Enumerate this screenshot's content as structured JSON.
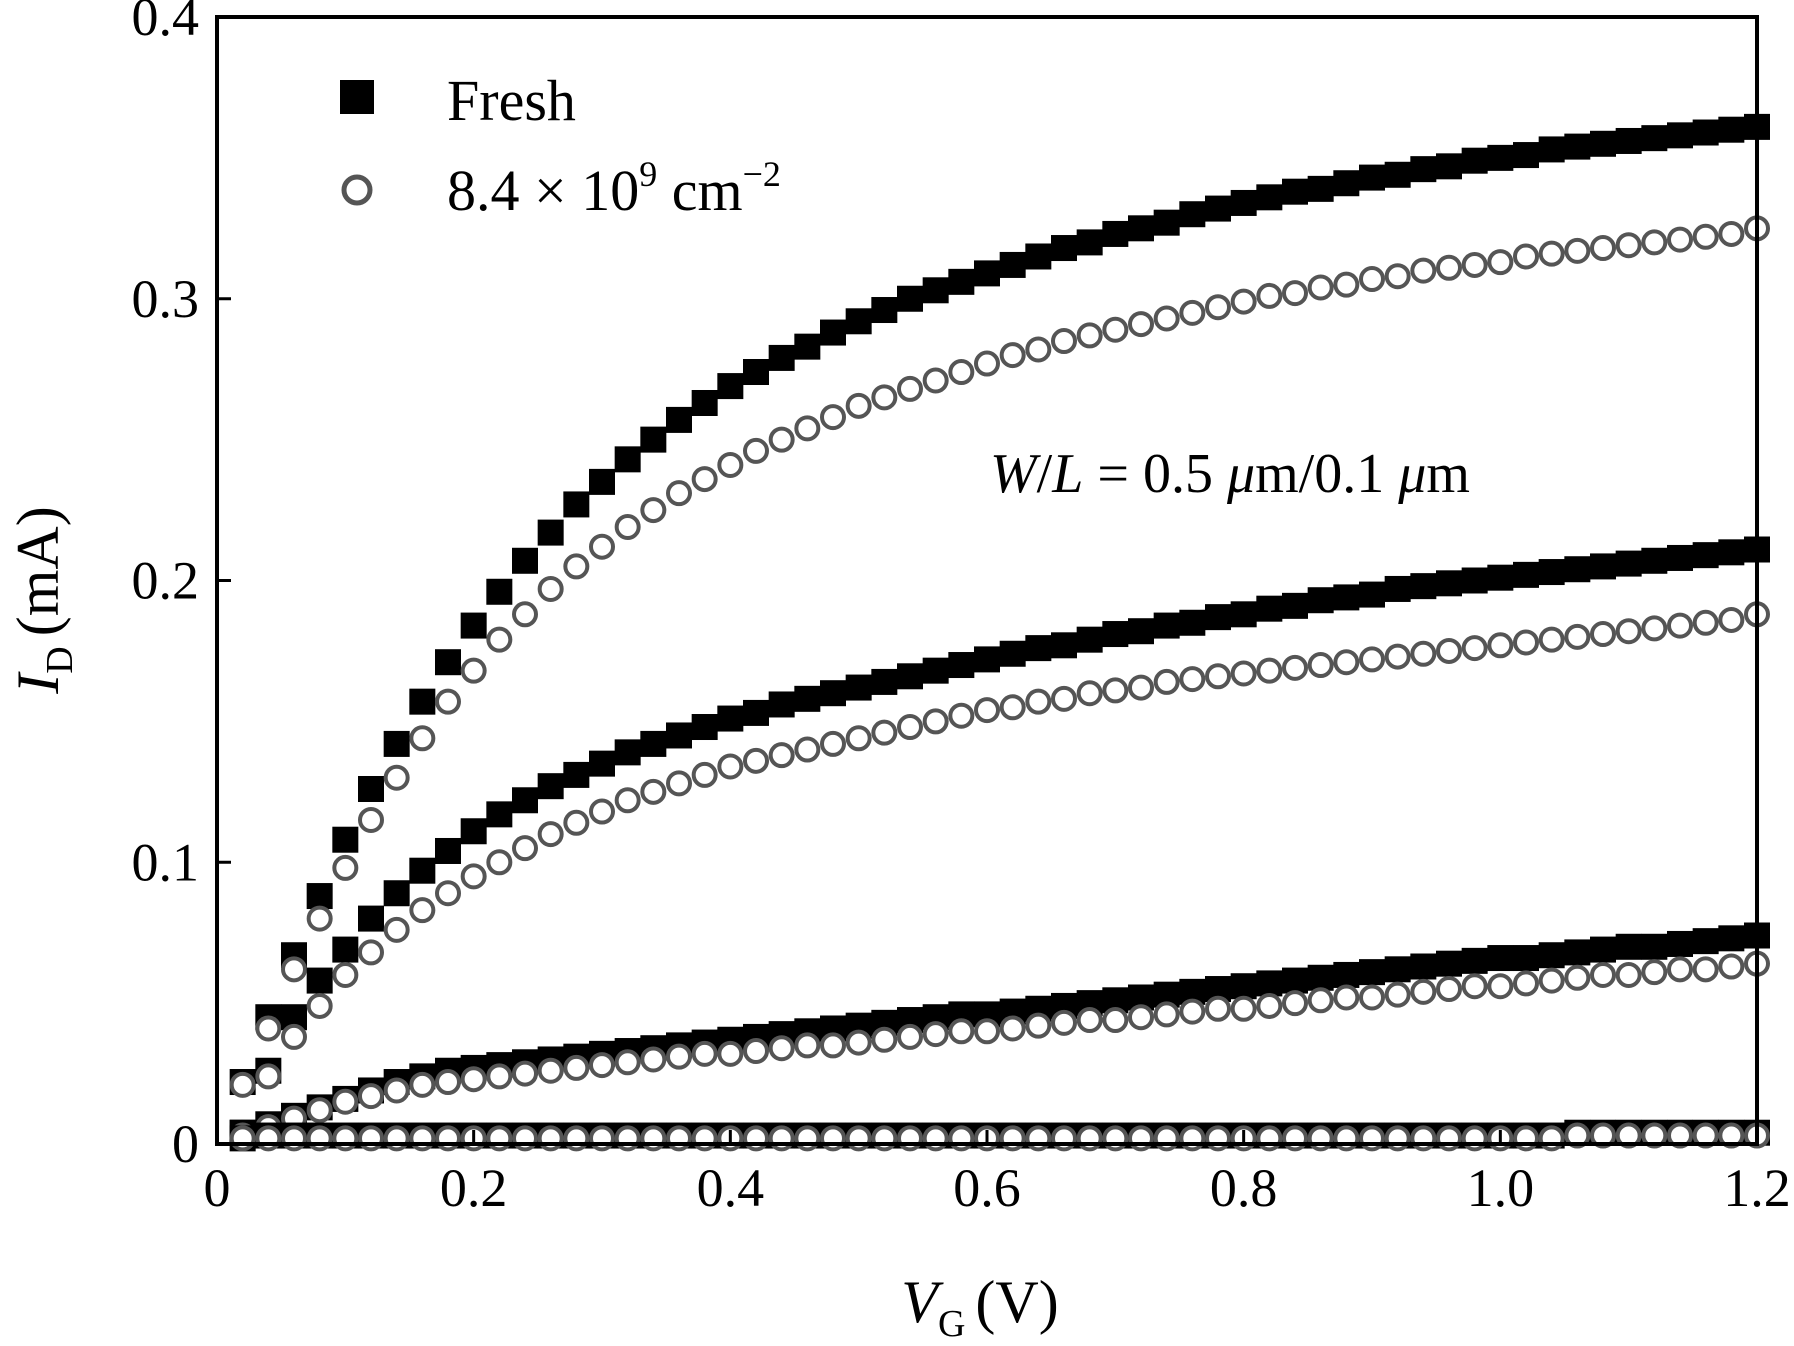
{
  "chart_data": {
    "type": "scatter",
    "xlabel": {
      "main": "V",
      "sub": "G",
      "unit": "(V)"
    },
    "ylabel": {
      "main": "I",
      "sub": "D",
      "unit": "(mA)"
    },
    "xlim": [
      0,
      1.2
    ],
    "ylim": [
      0,
      0.4
    ],
    "x_ticks": [
      "0",
      "0.2",
      "0.4",
      "0.6",
      "0.8",
      "1.0",
      "1.2"
    ],
    "y_ticks": [
      "0",
      "0.1",
      "0.2",
      "0.3",
      "0.4"
    ],
    "grid": false,
    "legend_position": "top-left",
    "legend": [
      {
        "label": "Fresh",
        "marker": "filled-square"
      },
      {
        "label_parts": [
          "8.4 × 10",
          "9",
          " cm",
          "−2"
        ],
        "marker": "open-circle"
      }
    ],
    "annotation": {
      "parts": [
        "W",
        "/",
        "L",
        " = 0.5 ",
        "μ",
        "m/0.1 ",
        "μ",
        "m"
      ]
    },
    "x": [
      0.02,
      0.04,
      0.06,
      0.08,
      0.1,
      0.12,
      0.14,
      0.16,
      0.18,
      0.2,
      0.22,
      0.24,
      0.26,
      0.28,
      0.3,
      0.32,
      0.34,
      0.36,
      0.38,
      0.4,
      0.42,
      0.44,
      0.46,
      0.48,
      0.5,
      0.52,
      0.54,
      0.56,
      0.58,
      0.6,
      0.62,
      0.64,
      0.66,
      0.68,
      0.7,
      0.72,
      0.74,
      0.76,
      0.78,
      0.8,
      0.82,
      0.84,
      0.86,
      0.88,
      0.9,
      0.92,
      0.94,
      0.96,
      0.98,
      1.0,
      1.02,
      1.04,
      1.06,
      1.08,
      1.1,
      1.12,
      1.14,
      1.16,
      1.18,
      1.2
    ],
    "series": [
      {
        "name": "Fresh",
        "marker": "filled-square",
        "curve": 1,
        "values": [
          0.022,
          0.045,
          0.067,
          0.088,
          0.108,
          0.126,
          0.142,
          0.157,
          0.171,
          0.184,
          0.196,
          0.207,
          0.217,
          0.227,
          0.235,
          0.243,
          0.25,
          0.257,
          0.263,
          0.269,
          0.274,
          0.279,
          0.283,
          0.288,
          0.292,
          0.296,
          0.3,
          0.303,
          0.306,
          0.309,
          0.312,
          0.315,
          0.318,
          0.32,
          0.323,
          0.325,
          0.327,
          0.33,
          0.332,
          0.334,
          0.336,
          0.338,
          0.339,
          0.341,
          0.343,
          0.344,
          0.346,
          0.347,
          0.349,
          0.35,
          0.351,
          0.353,
          0.354,
          0.355,
          0.356,
          0.357,
          0.358,
          0.359,
          0.36,
          0.361
        ]
      },
      {
        "name": "8.4 × 10^9 cm^-2",
        "marker": "open-circle",
        "curve": 1,
        "values": [
          0.021,
          0.041,
          0.062,
          0.08,
          0.098,
          0.115,
          0.13,
          0.144,
          0.157,
          0.168,
          0.179,
          0.188,
          0.197,
          0.205,
          0.212,
          0.219,
          0.225,
          0.231,
          0.236,
          0.241,
          0.246,
          0.25,
          0.254,
          0.258,
          0.262,
          0.265,
          0.268,
          0.271,
          0.274,
          0.277,
          0.28,
          0.282,
          0.285,
          0.287,
          0.289,
          0.291,
          0.293,
          0.295,
          0.297,
          0.299,
          0.301,
          0.302,
          0.304,
          0.305,
          0.307,
          0.308,
          0.31,
          0.311,
          0.312,
          0.313,
          0.315,
          0.316,
          0.317,
          0.318,
          0.319,
          0.32,
          0.321,
          0.322,
          0.323,
          0.325
        ]
      },
      {
        "name": "Fresh",
        "marker": "filled-square",
        "curve": 2,
        "values": [
          0.004,
          0.026,
          0.045,
          0.058,
          0.069,
          0.08,
          0.089,
          0.097,
          0.104,
          0.111,
          0.117,
          0.122,
          0.127,
          0.131,
          0.135,
          0.139,
          0.142,
          0.145,
          0.148,
          0.151,
          0.153,
          0.156,
          0.158,
          0.16,
          0.162,
          0.164,
          0.166,
          0.168,
          0.17,
          0.172,
          0.174,
          0.176,
          0.177,
          0.179,
          0.181,
          0.182,
          0.184,
          0.185,
          0.187,
          0.188,
          0.19,
          0.191,
          0.193,
          0.194,
          0.195,
          0.197,
          0.198,
          0.199,
          0.2,
          0.201,
          0.202,
          0.203,
          0.204,
          0.205,
          0.206,
          0.207,
          0.208,
          0.209,
          0.21,
          0.211
        ]
      },
      {
        "name": "8.4 × 10^9 cm^-2",
        "marker": "open-circle",
        "curve": 2,
        "values": [
          0.004,
          0.024,
          0.038,
          0.049,
          0.06,
          0.068,
          0.076,
          0.083,
          0.089,
          0.095,
          0.1,
          0.105,
          0.11,
          0.114,
          0.118,
          0.122,
          0.125,
          0.128,
          0.131,
          0.134,
          0.136,
          0.138,
          0.14,
          0.142,
          0.144,
          0.146,
          0.148,
          0.15,
          0.152,
          0.154,
          0.155,
          0.157,
          0.158,
          0.16,
          0.161,
          0.162,
          0.164,
          0.165,
          0.166,
          0.167,
          0.168,
          0.169,
          0.17,
          0.171,
          0.172,
          0.173,
          0.174,
          0.175,
          0.176,
          0.177,
          0.178,
          0.179,
          0.18,
          0.181,
          0.182,
          0.183,
          0.184,
          0.185,
          0.186,
          0.188
        ]
      },
      {
        "name": "Fresh",
        "marker": "filled-square",
        "curve": 3,
        "values": [
          0.004,
          0.007,
          0.01,
          0.013,
          0.016,
          0.019,
          0.022,
          0.024,
          0.026,
          0.027,
          0.028,
          0.029,
          0.03,
          0.031,
          0.032,
          0.033,
          0.034,
          0.035,
          0.036,
          0.037,
          0.038,
          0.039,
          0.04,
          0.041,
          0.042,
          0.043,
          0.044,
          0.045,
          0.046,
          0.046,
          0.047,
          0.048,
          0.049,
          0.05,
          0.051,
          0.052,
          0.053,
          0.054,
          0.055,
          0.056,
          0.057,
          0.058,
          0.059,
          0.06,
          0.061,
          0.062,
          0.063,
          0.064,
          0.065,
          0.066,
          0.066,
          0.067,
          0.068,
          0.069,
          0.07,
          0.07,
          0.071,
          0.072,
          0.073,
          0.074
        ]
      },
      {
        "name": "8.4 × 10^9 cm^-2",
        "marker": "open-circle",
        "curve": 3,
        "values": [
          0.003,
          0.006,
          0.009,
          0.012,
          0.015,
          0.017,
          0.019,
          0.021,
          0.022,
          0.023,
          0.024,
          0.025,
          0.026,
          0.027,
          0.028,
          0.029,
          0.03,
          0.031,
          0.032,
          0.032,
          0.033,
          0.034,
          0.035,
          0.035,
          0.036,
          0.037,
          0.038,
          0.039,
          0.04,
          0.04,
          0.041,
          0.042,
          0.043,
          0.044,
          0.044,
          0.045,
          0.046,
          0.047,
          0.048,
          0.048,
          0.049,
          0.05,
          0.051,
          0.052,
          0.052,
          0.053,
          0.054,
          0.055,
          0.056,
          0.056,
          0.057,
          0.058,
          0.059,
          0.06,
          0.06,
          0.061,
          0.062,
          0.062,
          0.063,
          0.064
        ]
      },
      {
        "name": "Fresh",
        "marker": "filled-square",
        "curve": 4,
        "values": [
          0.002,
          0.003,
          0.003,
          0.003,
          0.003,
          0.003,
          0.003,
          0.003,
          0.003,
          0.003,
          0.003,
          0.003,
          0.003,
          0.003,
          0.003,
          0.003,
          0.003,
          0.003,
          0.003,
          0.003,
          0.003,
          0.003,
          0.003,
          0.003,
          0.003,
          0.003,
          0.003,
          0.003,
          0.003,
          0.003,
          0.003,
          0.003,
          0.003,
          0.003,
          0.003,
          0.003,
          0.003,
          0.003,
          0.003,
          0.003,
          0.003,
          0.003,
          0.003,
          0.003,
          0.003,
          0.003,
          0.003,
          0.003,
          0.003,
          0.003,
          0.003,
          0.003,
          0.004,
          0.004,
          0.004,
          0.004,
          0.004,
          0.004,
          0.004,
          0.004
        ]
      },
      {
        "name": "8.4 × 10^9 cm^-2",
        "marker": "open-circle",
        "curve": 4,
        "values": [
          0.002,
          0.002,
          0.002,
          0.002,
          0.002,
          0.002,
          0.002,
          0.002,
          0.002,
          0.002,
          0.002,
          0.002,
          0.002,
          0.002,
          0.002,
          0.002,
          0.002,
          0.002,
          0.002,
          0.002,
          0.002,
          0.002,
          0.002,
          0.002,
          0.002,
          0.002,
          0.002,
          0.002,
          0.002,
          0.002,
          0.002,
          0.002,
          0.002,
          0.002,
          0.002,
          0.002,
          0.002,
          0.002,
          0.002,
          0.002,
          0.002,
          0.002,
          0.002,
          0.002,
          0.002,
          0.002,
          0.002,
          0.002,
          0.002,
          0.002,
          0.002,
          0.002,
          0.003,
          0.003,
          0.003,
          0.003,
          0.003,
          0.003,
          0.003,
          0.003
        ]
      }
    ]
  }
}
